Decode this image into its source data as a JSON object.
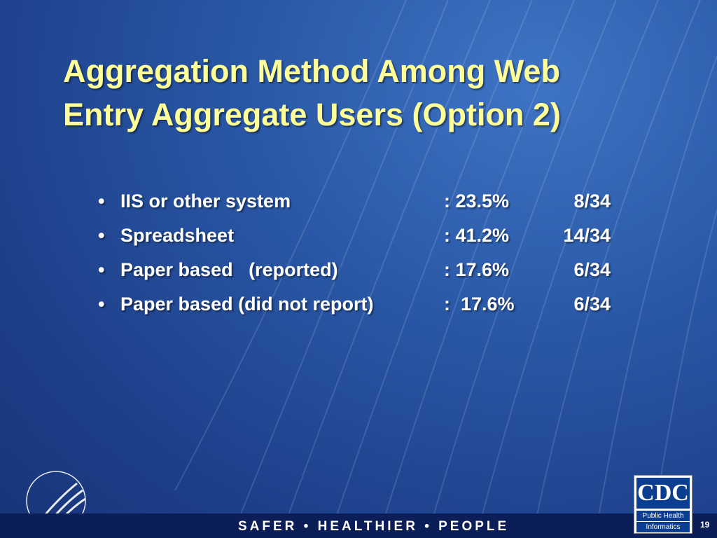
{
  "title": [
    "Aggregation Method Among Web",
    "Entry Aggregate Users (Option 2)"
  ],
  "bullets": [
    {
      "label": "IIS or other system",
      "percent": ": 23.5%",
      "count": "8/34"
    },
    {
      "label": "Spreadsheet",
      "percent": ": 41.2%",
      "count": "14/34"
    },
    {
      "label": "Paper based   (reported)",
      "percent": ": 17.6%",
      "count": "6/34"
    },
    {
      "label": "Paper based (did not report)",
      "percent": ":  17.6%",
      "count": "6/34"
    }
  ],
  "footer": "SAFER • HEALTHIER • PEOPLE",
  "logo": {
    "name": "CDC",
    "line1": "Public Health",
    "line2": "Informatics"
  },
  "page_number": "19"
}
